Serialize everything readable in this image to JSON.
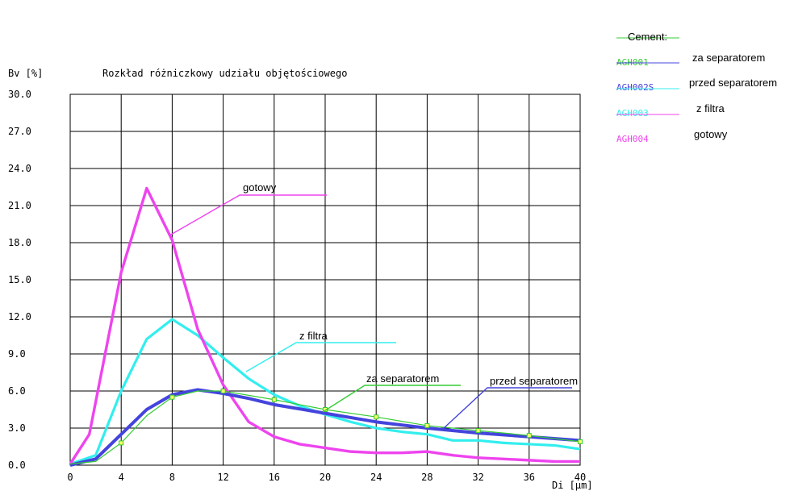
{
  "chart_data": {
    "type": "line",
    "title": "Rozkład różniczkowy udziału objętościowego",
    "ylabel": "Bv [%]",
    "xlabel": "Di [µm]",
    "xlim": [
      0,
      40
    ],
    "ylim": [
      0,
      30
    ],
    "x_ticks": [
      "0",
      "4",
      "8",
      "12",
      "16",
      "20",
      "24",
      "28",
      "32",
      "36",
      "40"
    ],
    "y_ticks": [
      "0.0",
      "3.0",
      "6.0",
      "9.0",
      "12.0",
      "15.0",
      "18.0",
      "21.0",
      "24.0",
      "27.0",
      "30.0"
    ],
    "grid": true,
    "legend_title": "Cement:",
    "series": [
      {
        "name": "za separatorem",
        "code": "AGH001",
        "color": "#33cc33",
        "x": [
          0,
          2,
          4,
          6,
          8,
          10,
          12,
          16,
          20,
          24,
          28,
          32,
          36,
          40
        ],
        "y": [
          0.1,
          0.3,
          1.8,
          4.0,
          5.5,
          6.0,
          6.0,
          5.3,
          4.5,
          3.9,
          3.2,
          2.8,
          2.4,
          1.9
        ]
      },
      {
        "name": "przed separatorem",
        "code": "AGH002S",
        "color": "#4444dd",
        "x": [
          0,
          2,
          4,
          6,
          8,
          10,
          12,
          14,
          16,
          20,
          24,
          28,
          32,
          36,
          40
        ],
        "y": [
          0.0,
          0.5,
          2.5,
          4.5,
          5.7,
          6.1,
          5.8,
          5.4,
          4.9,
          4.2,
          3.5,
          3.0,
          2.6,
          2.3,
          2.0
        ]
      },
      {
        "name": "z filtra",
        "code": "AGH003",
        "color": "#33eeee",
        "x": [
          0,
          2,
          4,
          6,
          8,
          10,
          12,
          14,
          16,
          18,
          20,
          22,
          24,
          26,
          28,
          30,
          32,
          34,
          36,
          38,
          40
        ],
        "y": [
          0.1,
          0.8,
          6.0,
          10.2,
          11.8,
          10.5,
          8.7,
          7.0,
          5.7,
          4.8,
          4.1,
          3.5,
          3.0,
          2.7,
          2.5,
          2.0,
          2.0,
          1.8,
          1.7,
          1.6,
          1.3
        ]
      },
      {
        "name": "gotowy",
        "code": "AGH004",
        "color": "#ee44ee",
        "x": [
          0,
          1.5,
          4,
          6,
          8,
          10,
          12,
          14,
          16,
          18,
          20,
          22,
          24,
          26,
          28,
          30,
          32,
          34,
          36,
          38,
          40
        ],
        "y": [
          0.1,
          2.5,
          15.6,
          22.4,
          18.2,
          11.0,
          6.5,
          3.5,
          2.3,
          1.7,
          1.4,
          1.1,
          1.0,
          1.0,
          1.1,
          0.8,
          0.6,
          0.5,
          0.4,
          0.3,
          0.3
        ]
      }
    ],
    "annotations": [
      {
        "text": "gotowy",
        "series": 3
      },
      {
        "text": "z filtra",
        "series": 2
      },
      {
        "text": "za separatorem",
        "series": 0
      },
      {
        "text": "przed separatorem",
        "series": 1
      }
    ],
    "legend": [
      {
        "code": "AGH001",
        "label": "za separatorem",
        "color": "#33cc33"
      },
      {
        "code": "AGH002S",
        "label": "przed separatorem",
        "color": "#4444dd"
      },
      {
        "code": "AGH003",
        "label": "z filtra",
        "color": "#33eeee"
      },
      {
        "code": "AGH004",
        "label": "gotowy",
        "color": "#ee44ee"
      }
    ]
  }
}
